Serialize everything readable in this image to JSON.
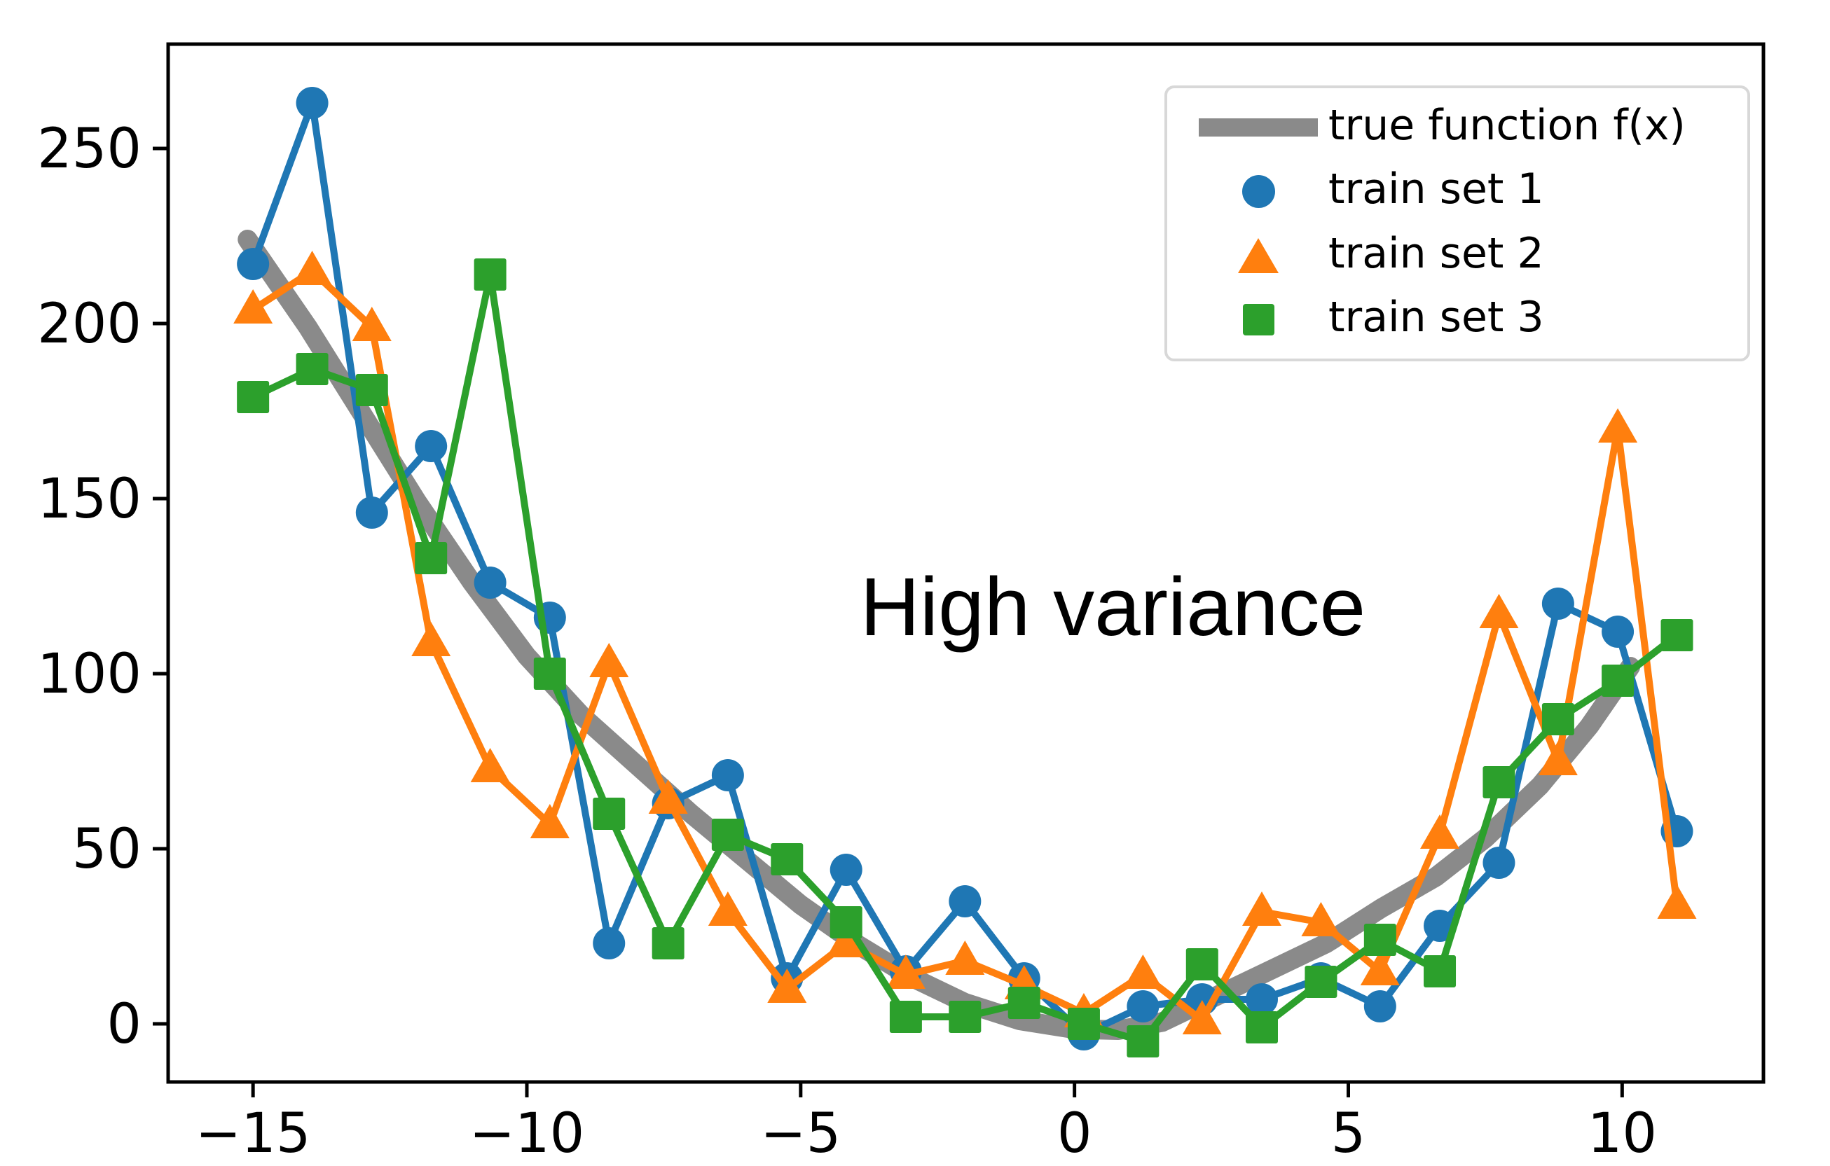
{
  "chart_data": {
    "type": "line",
    "title": "",
    "xlabel": "",
    "ylabel": "",
    "annotation": {
      "text": "High variance",
      "x": 0.7,
      "y": 119
    },
    "x": [
      -15.0,
      -13.92,
      -12.83,
      -11.75,
      -10.67,
      -9.58,
      -8.5,
      -7.42,
      -6.33,
      -5.25,
      -4.17,
      -3.08,
      -2.0,
      -0.92,
      0.17,
      1.25,
      2.33,
      3.42,
      4.5,
      5.58,
      6.67,
      7.75,
      8.83,
      9.92,
      11.0
    ],
    "series": [
      {
        "name": "train set 1",
        "color": "#1f77b4",
        "marker": "circle",
        "values": [
          217,
          263,
          146,
          165,
          126,
          116,
          23,
          63,
          71,
          13,
          44,
          15,
          35,
          13,
          -3,
          5,
          7,
          7,
          13,
          5,
          28,
          46,
          120,
          112,
          55
        ]
      },
      {
        "name": "train set 2",
        "color": "#ff7f0e",
        "marker": "triangle",
        "values": [
          204,
          215,
          199,
          109,
          73,
          57,
          103,
          64,
          32,
          10,
          23,
          14,
          18,
          11,
          3,
          14,
          1,
          32,
          29,
          15,
          54,
          117,
          75,
          170,
          34
        ]
      },
      {
        "name": "train set 3",
        "color": "#2ca02c",
        "marker": "square",
        "values": [
          179,
          187,
          181,
          133,
          214,
          100,
          60,
          23,
          54,
          47,
          29,
          2,
          2,
          6,
          0,
          -5,
          17,
          -1,
          12,
          24,
          15,
          69,
          87,
          98,
          111
        ]
      }
    ],
    "true_function": {
      "name": "true function f(x)",
      "color": "#8a8a8a",
      "x": [
        -15.1,
        -14,
        -13,
        -12,
        -11,
        -10,
        -9,
        -8,
        -7,
        -6,
        -5,
        -4,
        -3,
        -2,
        -1,
        0,
        0.8,
        1.6,
        2.6,
        3.6,
        4.6,
        5.6,
        6.6,
        7.5,
        8.5,
        9.4,
        10.15
      ],
      "y": [
        224,
        199,
        174,
        149,
        126,
        105,
        88,
        74,
        60,
        47,
        34,
        23,
        13.5,
        6,
        1,
        -1.5,
        -1.8,
        0.5,
        8,
        15.5,
        23,
        33,
        42,
        53,
        68,
        85,
        102
      ]
    },
    "axes": {
      "xlim": [
        -16.55,
        12.58
      ],
      "ylim": [
        -16.6,
        279.8
      ],
      "xticks": [
        -15,
        -10,
        -5,
        0,
        5,
        10
      ],
      "xtick_labels": [
        "−15",
        "−10",
        "−5",
        "0",
        "5",
        "10"
      ],
      "yticks": [
        0,
        50,
        100,
        150,
        200,
        250
      ],
      "ytick_labels": [
        "0",
        "50",
        "100",
        "150",
        "200",
        "250"
      ],
      "grid": false
    },
    "legend": {
      "position": "upper right",
      "items": [
        {
          "label": "true function f(x)",
          "swatch": "line",
          "color": "#8a8a8a"
        },
        {
          "label": "train set 1",
          "swatch": "circle",
          "color": "#1f77b4"
        },
        {
          "label": "train set 2",
          "swatch": "triangle",
          "color": "#ff7f0e"
        },
        {
          "label": "train set 3",
          "swatch": "square",
          "color": "#2ca02c"
        }
      ]
    }
  }
}
